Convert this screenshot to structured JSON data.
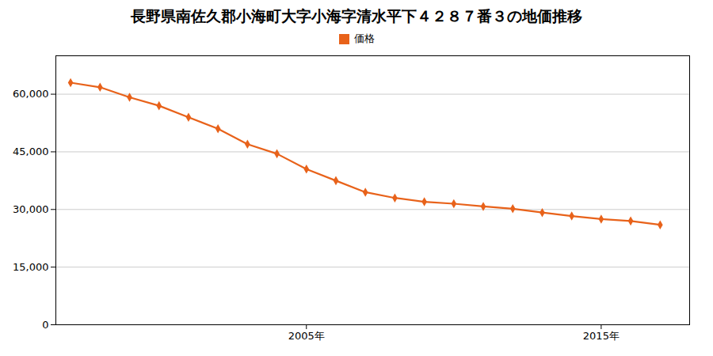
{
  "chart_data": {
    "type": "line",
    "title": "長野県南佐久郡小海町大字小海字清水平下４２８７番３の地価推移",
    "x": [
      1997,
      1998,
      1999,
      2000,
      2001,
      2002,
      2003,
      2004,
      2005,
      2006,
      2007,
      2008,
      2009,
      2010,
      2011,
      2012,
      2013,
      2014,
      2015,
      2016,
      2017
    ],
    "series": [
      {
        "name": "価格",
        "color": "#e8621a",
        "marker": "diamond",
        "values": [
          63000,
          61800,
          59200,
          57000,
          54000,
          51000,
          47000,
          44500,
          40500,
          37500,
          34500,
          33000,
          32000,
          31500,
          30800,
          30200,
          29200,
          28300,
          27500,
          27000,
          26000
        ]
      }
    ],
    "xlim": [
      1996.5,
      2018
    ],
    "xticks": [
      {
        "value": 2005,
        "label": "2005年"
      },
      {
        "value": 2015,
        "label": "2015年"
      }
    ],
    "ylim": [
      0,
      70000
    ],
    "yticks": [
      0,
      {
        "value": 15000,
        "label": "15,000"
      },
      {
        "value": 30000,
        "label": "30,000"
      },
      {
        "value": 45000,
        "label": "45,000"
      },
      {
        "value": 60000,
        "label": "60,000"
      }
    ],
    "grid": "y",
    "legend": "top"
  }
}
